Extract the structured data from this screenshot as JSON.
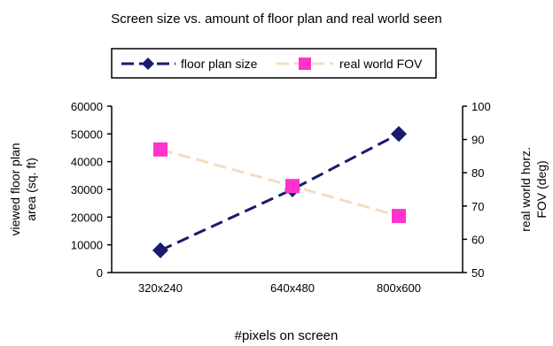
{
  "chart_data": {
    "type": "line",
    "title": "Screen size vs. amount of floor plan and real world seen",
    "xlabel": "#pixels on screen",
    "categories": [
      "320x240",
      "640x480",
      "800x600"
    ],
    "y_left": {
      "label_lines": [
        "viewed floor plan",
        "area (sq. ft)"
      ],
      "ylim": [
        0,
        60000
      ],
      "ticks": [
        0,
        10000,
        20000,
        30000,
        40000,
        50000,
        60000
      ]
    },
    "y_right": {
      "label_lines": [
        "real world horz.",
        "FOV (deg)"
      ],
      "ylim": [
        50,
        100
      ],
      "ticks": [
        50,
        60,
        70,
        80,
        90,
        100
      ]
    },
    "series": [
      {
        "name": "floor plan size",
        "axis": "left",
        "x": [
          "320x240",
          "640x480",
          "800x600"
        ],
        "values": [
          8000,
          30000,
          50000
        ],
        "color": "#1a1a6e",
        "marker": "diamond",
        "line_style": "dashed"
      },
      {
        "name": "real world FOV",
        "axis": "right",
        "x": [
          "320x240",
          "640x480",
          "800x600"
        ],
        "values": [
          87,
          76,
          67
        ],
        "color": "#ff33cc",
        "line_color": "#f4dcc0",
        "marker": "square",
        "line_style": "dashed"
      }
    ],
    "legend": "top",
    "grid": false
  }
}
